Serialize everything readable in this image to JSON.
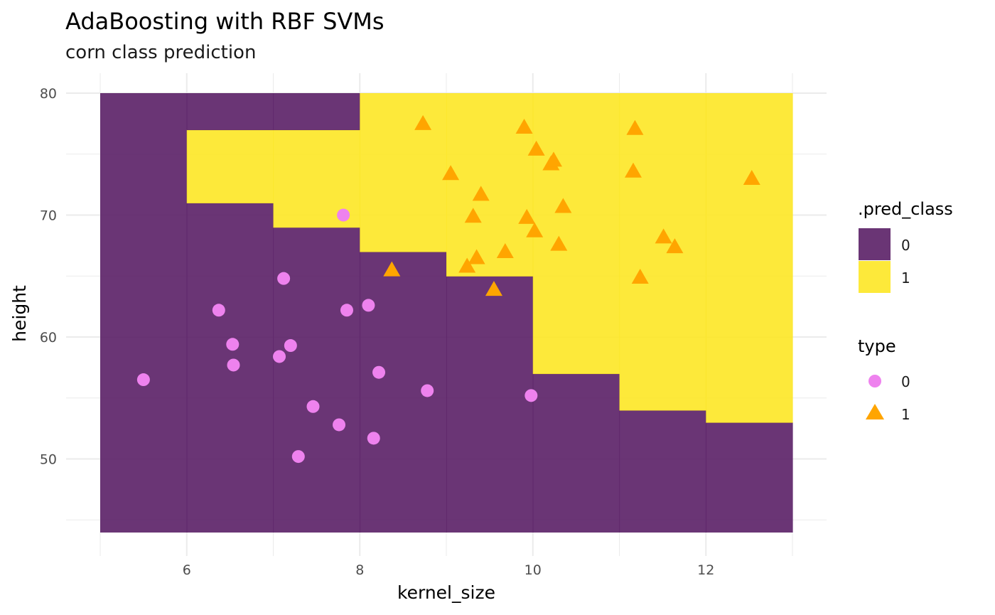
{
  "chart_data": {
    "type": "scatter",
    "title": "AdaBoosting with RBF SVMs",
    "subtitle": "corn class prediction",
    "xlabel": "kernel_size",
    "ylabel": "height",
    "xlim": [
      5,
      13
    ],
    "ylim": [
      45,
      80
    ],
    "x_ticks": [
      6,
      8,
      10,
      12
    ],
    "y_ticks": [
      50,
      60,
      70,
      80
    ],
    "grid": true,
    "legend_placement": "right",
    "fill_colors": {
      "0": "#5a1f66",
      "1": "#fde725"
    },
    "point_colors": {
      "0": "#ee82ee",
      "1": "#ffa500"
    },
    "regions": [
      {
        "x0": 5.0,
        "x1": 6.0,
        "y0": 44,
        "y1": 80,
        "class": "0"
      },
      {
        "x0": 6.0,
        "x1": 7.0,
        "y0": 44,
        "y1": 71,
        "class": "0"
      },
      {
        "x0": 6.0,
        "x1": 7.0,
        "y0": 71,
        "y1": 77,
        "class": "1"
      },
      {
        "x0": 6.0,
        "x1": 7.0,
        "y0": 77,
        "y1": 80,
        "class": "0"
      },
      {
        "x0": 7.0,
        "x1": 8.0,
        "y0": 44,
        "y1": 69,
        "class": "0"
      },
      {
        "x0": 7.0,
        "x1": 8.0,
        "y0": 69,
        "y1": 77,
        "class": "1"
      },
      {
        "x0": 7.0,
        "x1": 8.0,
        "y0": 77,
        "y1": 80,
        "class": "0"
      },
      {
        "x0": 8.0,
        "x1": 9.0,
        "y0": 44,
        "y1": 67,
        "class": "0"
      },
      {
        "x0": 8.0,
        "x1": 9.0,
        "y0": 67,
        "y1": 80,
        "class": "1"
      },
      {
        "x0": 9.0,
        "x1": 10.0,
        "y0": 44,
        "y1": 65,
        "class": "0"
      },
      {
        "x0": 9.0,
        "x1": 10.0,
        "y0": 65,
        "y1": 80,
        "class": "1"
      },
      {
        "x0": 10.0,
        "x1": 11.0,
        "y0": 44,
        "y1": 57,
        "class": "0"
      },
      {
        "x0": 10.0,
        "x1": 11.0,
        "y0": 57,
        "y1": 80,
        "class": "1"
      },
      {
        "x0": 11.0,
        "x1": 12.0,
        "y0": 44,
        "y1": 54,
        "class": "0"
      },
      {
        "x0": 11.0,
        "x1": 12.0,
        "y0": 54,
        "y1": 80,
        "class": "1"
      },
      {
        "x0": 12.0,
        "x1": 13.0,
        "y0": 44,
        "y1": 53,
        "class": "0"
      },
      {
        "x0": 12.0,
        "x1": 13.0,
        "y0": 53,
        "y1": 80,
        "class": "1"
      }
    ],
    "series": [
      {
        "name": "0",
        "shape": "circle",
        "x": [
          5.5,
          6.37,
          6.53,
          6.54,
          7.07,
          7.12,
          7.2,
          7.29,
          7.46,
          7.76,
          7.81,
          7.85,
          8.1,
          8.16,
          8.22,
          8.78,
          9.98
        ],
        "y": [
          56.5,
          62.2,
          59.4,
          57.7,
          58.4,
          64.8,
          59.3,
          50.2,
          54.3,
          52.8,
          70.0,
          62.2,
          62.6,
          51.7,
          57.1,
          55.6,
          55.2
        ]
      },
      {
        "name": "1",
        "shape": "triangle",
        "x": [
          8.37,
          8.73,
          9.05,
          9.24,
          9.31,
          9.35,
          9.4,
          9.55,
          9.68,
          9.9,
          9.93,
          10.02,
          10.04,
          10.21,
          10.24,
          10.3,
          10.35,
          11.16,
          11.18,
          11.24,
          11.51,
          11.64,
          12.53
        ],
        "y": [
          65.5,
          77.5,
          73.4,
          65.8,
          69.9,
          66.5,
          71.7,
          63.9,
          67.0,
          77.2,
          69.8,
          68.7,
          75.4,
          74.2,
          74.5,
          67.6,
          70.7,
          73.6,
          77.1,
          64.9,
          68.2,
          67.4,
          73.0
        ]
      }
    ],
    "legend": [
      {
        "title": ".pred_class",
        "entries": [
          {
            "label": "0"
          },
          {
            "label": "1"
          }
        ]
      },
      {
        "title": "type",
        "entries": [
          {
            "label": "0"
          },
          {
            "label": "1"
          }
        ]
      }
    ]
  }
}
